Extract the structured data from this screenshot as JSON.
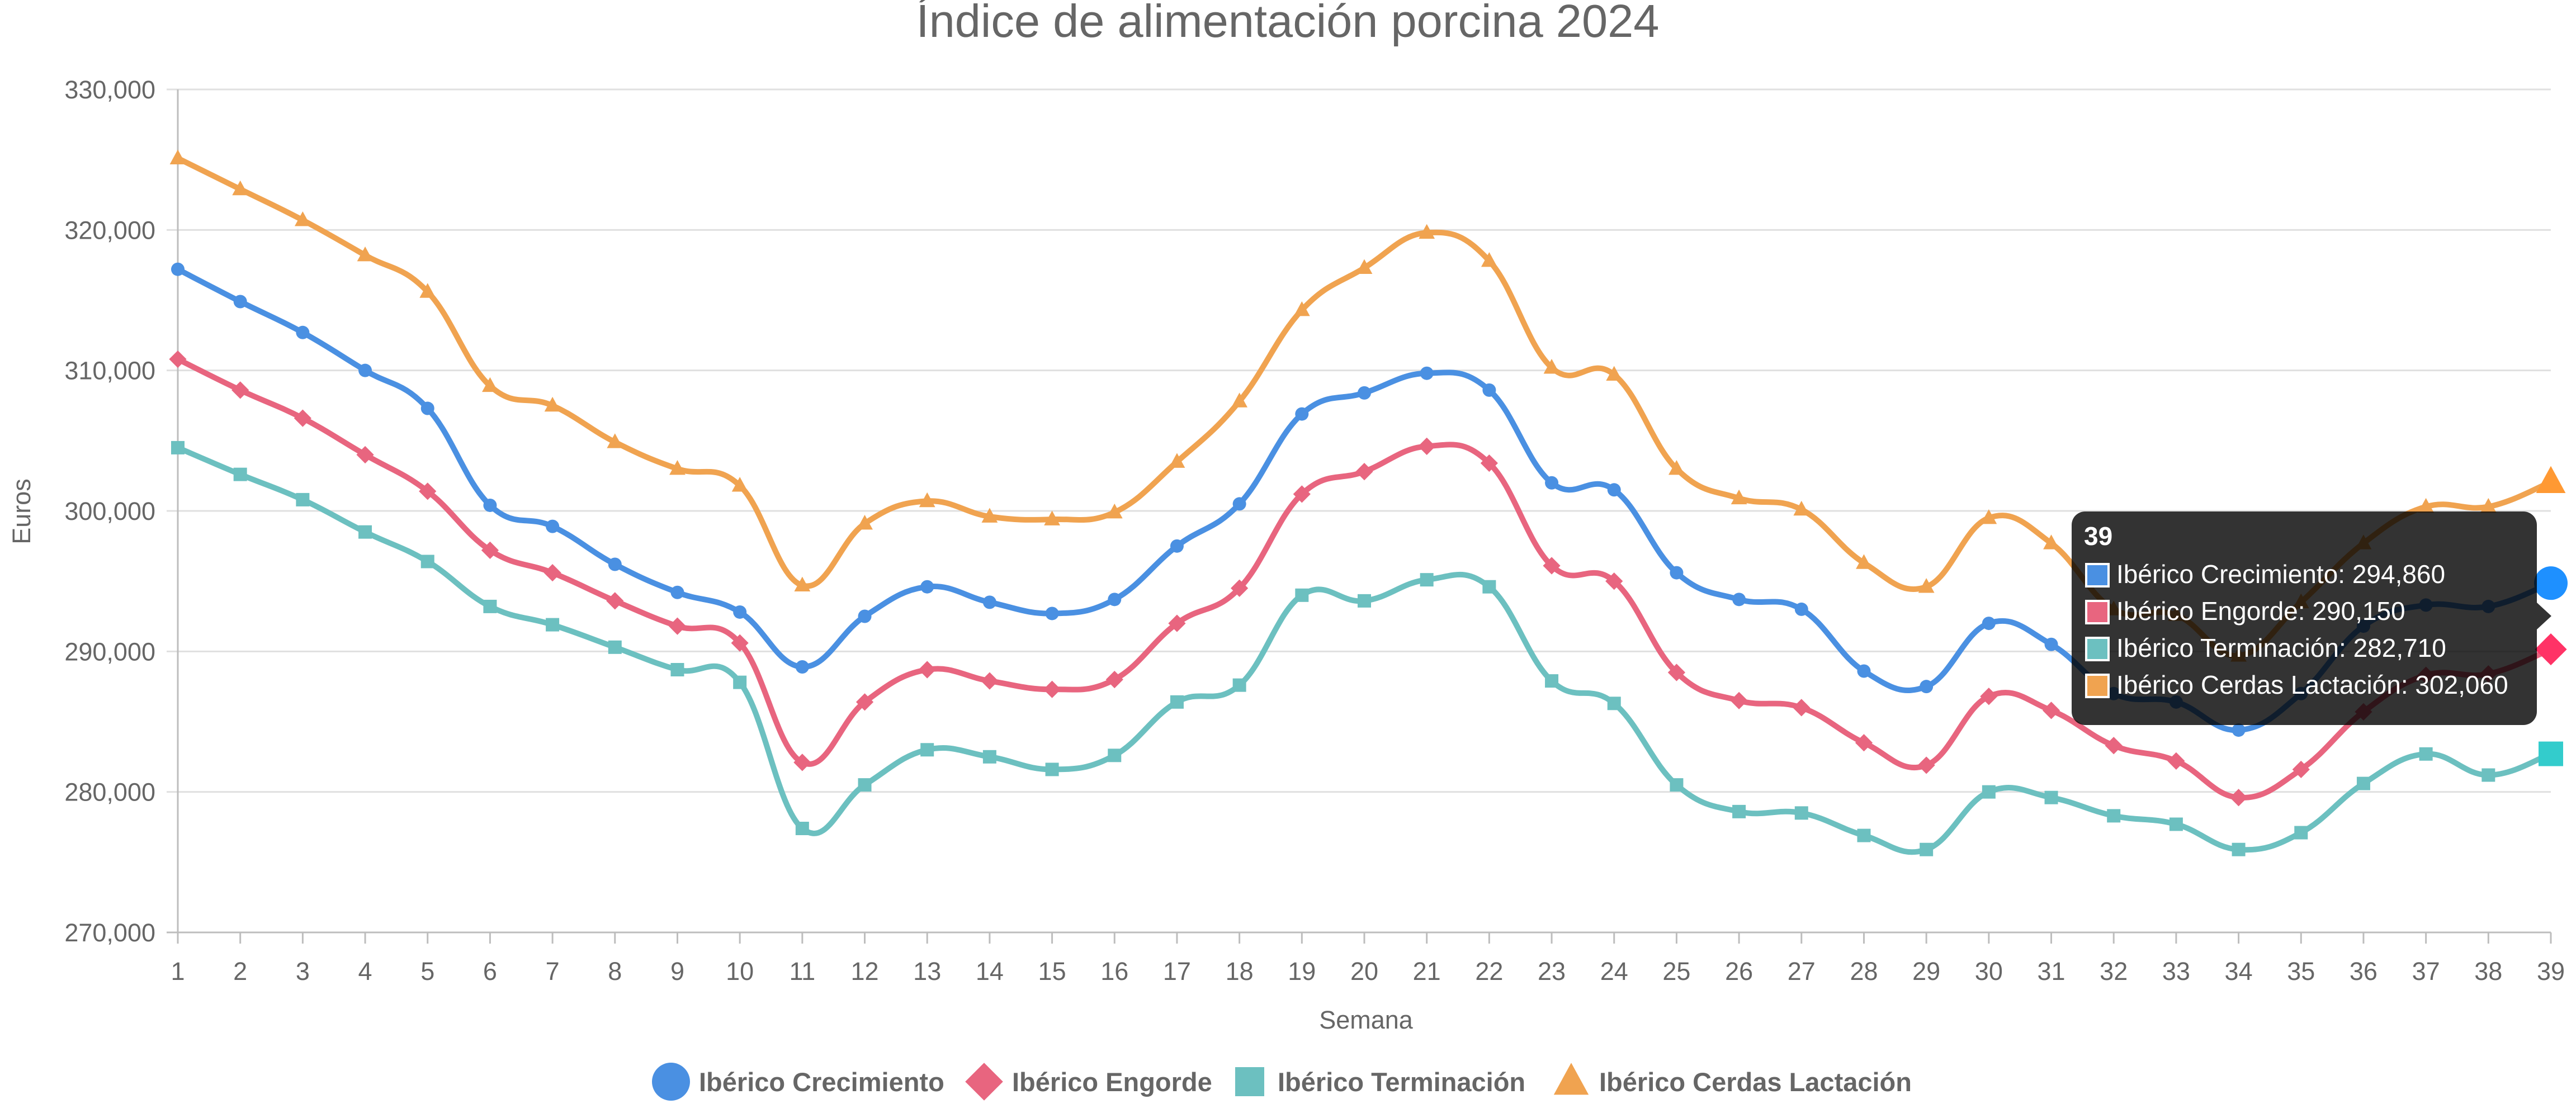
{
  "chart_data": {
    "type": "line",
    "title": "Índice de alimentación porcina 2024",
    "xlabel": "Semana",
    "ylabel": "Euros",
    "x": [
      1,
      2,
      3,
      4,
      5,
      6,
      7,
      8,
      9,
      10,
      11,
      12,
      13,
      14,
      15,
      16,
      17,
      18,
      19,
      20,
      21,
      22,
      23,
      24,
      25,
      26,
      27,
      28,
      29,
      30,
      31,
      32,
      33,
      34,
      35,
      36,
      37,
      38,
      39
    ],
    "ylim": [
      270000,
      330000
    ],
    "yticks": [
      270000,
      280000,
      290000,
      300000,
      310000,
      320000,
      330000
    ],
    "ytick_labels": [
      "270,000",
      "280,000",
      "290,000",
      "300,000",
      "310,000",
      "320,000",
      "330,000"
    ],
    "grid": true,
    "legend_position": "bottom",
    "series": [
      {
        "name": "Ibérico Crecimiento",
        "color": "#4a90e2",
        "marker": "circle",
        "values": [
          317200,
          314900,
          312700,
          310000,
          307300,
          300400,
          298900,
          296200,
          294200,
          292800,
          288900,
          292500,
          294600,
          293500,
          292700,
          293700,
          297500,
          300500,
          306900,
          308400,
          309800,
          308600,
          302000,
          301500,
          295600,
          293700,
          293000,
          288600,
          287500,
          292000,
          290500,
          287000,
          286400,
          284400,
          287000,
          291800,
          293300,
          293200,
          294860
        ]
      },
      {
        "name": "Ibérico Engorde",
        "color": "#e8657f",
        "marker": "diamond",
        "values": [
          310800,
          308600,
          306600,
          304000,
          301400,
          297200,
          295600,
          293600,
          291800,
          290600,
          282100,
          286400,
          288700,
          287900,
          287300,
          288000,
          292000,
          294500,
          301200,
          302800,
          304600,
          303400,
          296100,
          295000,
          288500,
          286500,
          286000,
          283500,
          281900,
          286800,
          285800,
          283300,
          282200,
          279600,
          281600,
          285700,
          288300,
          288400,
          290150
        ]
      },
      {
        "name": "Ibérico Terminación",
        "color": "#6cc0c0",
        "marker": "square",
        "values": [
          304500,
          302600,
          300800,
          298500,
          296400,
          293200,
          291900,
          290300,
          288700,
          287800,
          277400,
          280500,
          283000,
          282500,
          281600,
          282600,
          286400,
          287600,
          294000,
          293600,
          295100,
          294600,
          287900,
          286300,
          280500,
          278600,
          278500,
          276900,
          275900,
          280000,
          279600,
          278300,
          277700,
          275900,
          277100,
          280600,
          282700,
          281200,
          282710
        ]
      },
      {
        "name": "Ibérico Cerdas Lactación",
        "color": "#f0a350",
        "marker": "triangle",
        "values": [
          325100,
          322900,
          320700,
          318200,
          315600,
          308900,
          307500,
          304900,
          303000,
          301800,
          294700,
          299100,
          300700,
          299600,
          299400,
          299900,
          303500,
          307800,
          314300,
          317300,
          319800,
          317800,
          310200,
          309700,
          303000,
          300900,
          300100,
          296300,
          294600,
          299500,
          297700,
          293000,
          292600,
          289700,
          293500,
          297700,
          300300,
          300300,
          302060
        ]
      }
    ],
    "tooltip": {
      "title": "39",
      "lines": [
        "Ibérico Crecimiento: 294,860",
        "Ibérico Engorde: 290,150",
        "Ibérico Terminación: 282,710",
        "Ibérico Cerdas Lactación: 302,060"
      ]
    }
  }
}
